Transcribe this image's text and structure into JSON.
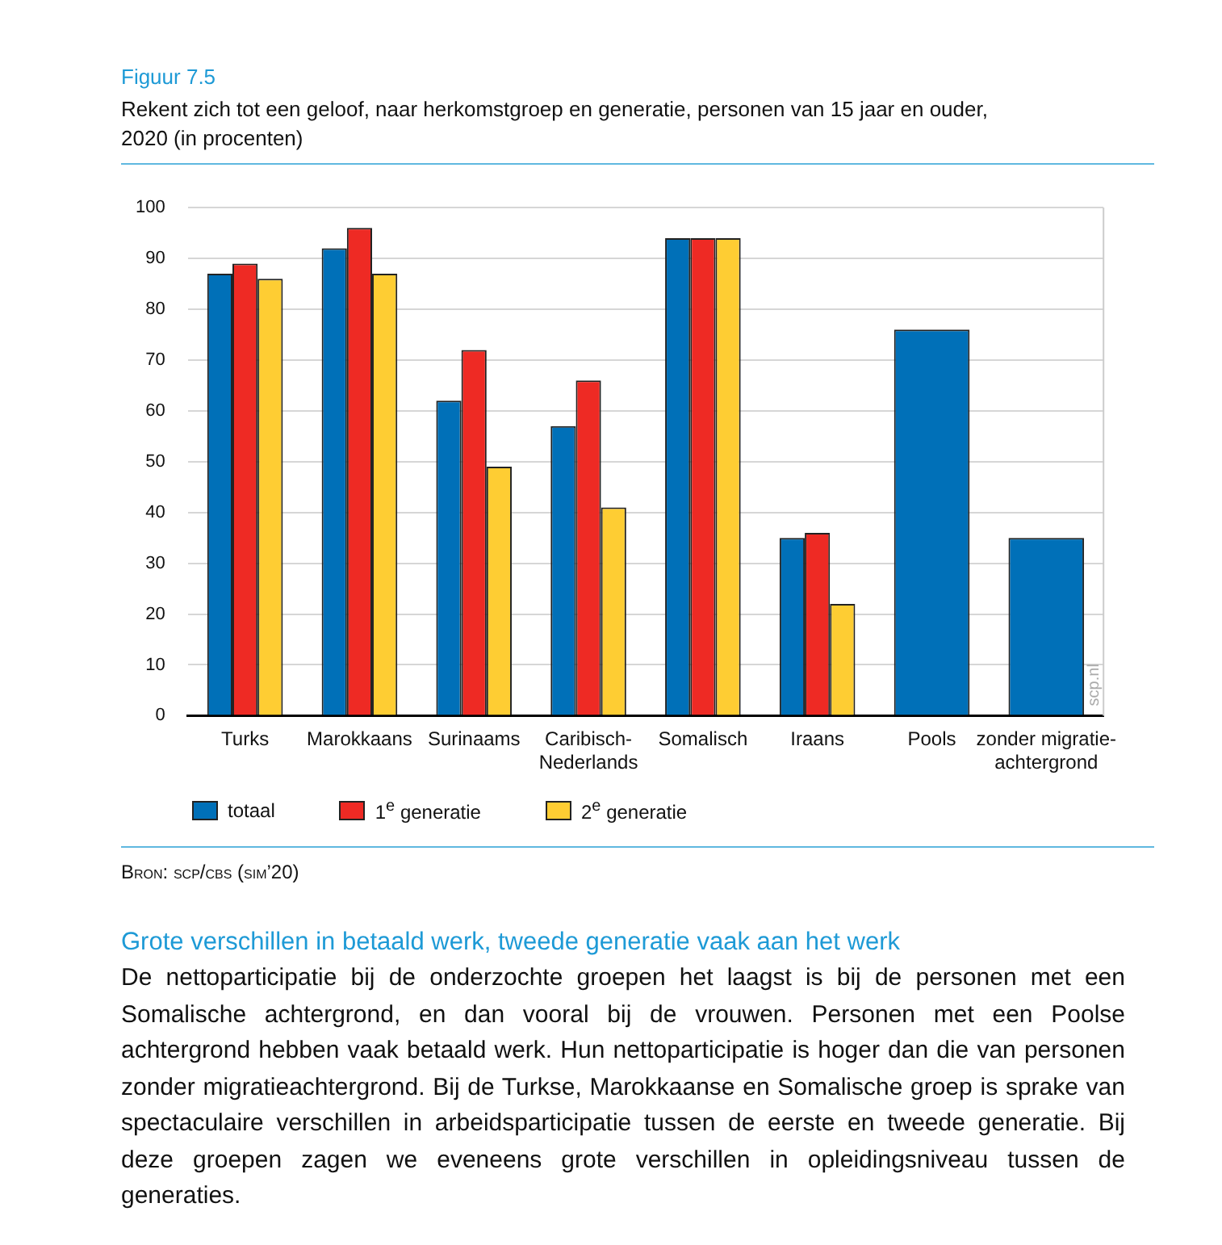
{
  "chart_data": {
    "type": "bar",
    "title": "Figuur 7.5",
    "subtitle": "Rekent zich tot een geloof, naar herkomstgroep en generatie, personen van 15 jaar en ouder, 2020 (in procenten)",
    "categories": [
      "Turks",
      "Marokkaans",
      "Surinaams",
      "Caribisch-Nederlands",
      "Somalisch",
      "Iraans",
      "Pools",
      "zonder migratie-achtergrond"
    ],
    "series": [
      {
        "name": "totaal",
        "color": "#0070b8",
        "values": [
          87,
          92,
          62,
          57,
          94,
          35,
          76,
          35
        ]
      },
      {
        "name": "1$^{e}$ generatie",
        "color": "#ee2a24",
        "values": [
          89,
          96,
          72,
          66,
          94,
          36,
          null,
          null
        ]
      },
      {
        "name": "2$^{e}$ generatie",
        "color": "#fecd33",
        "values": [
          86,
          87,
          49,
          41,
          94,
          22,
          null,
          null
        ]
      }
    ],
    "ylim": [
      0,
      100
    ],
    "yticks": [
      0,
      10,
      20,
      30,
      40,
      50,
      60,
      70,
      80,
      90,
      100
    ],
    "grid": "y",
    "legend": "bottom left",
    "annotations": [
      "scp.nl",
      "Bron: scp/cbs (sim’20)",
      "Grote verschillen in betaald werk, tweede generatie vaak aan het werk",
      "De nettoparticipatie bij de onderzochte groepen het laagst is bij de personen met een Somalische achtergrond, en dan vooral bij de vrouwen. Personen met een Poolse achtergrond hebben vaak betaald werk. Hun nettoparticipatie is hoger dan die van personen zonder migratieachtergrond. Bij de Turkse, Marokkaanse en Somalische groep is sprake van spectaculaire verschillen in arbeidsparticipatie tussen de eerste en tweede generatie. Bij deze groepen zagen we eveneens grote verschillen in opleidingsniveau tussen de generaties."
    ]
  }
}
